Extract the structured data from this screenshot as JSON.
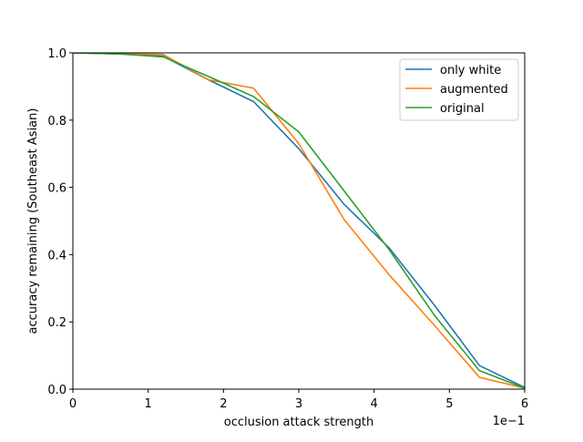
{
  "chart_data": {
    "type": "line",
    "xlabel": "occlusion attack strength",
    "ylabel": "accuracy remaining (Southeast Asian)",
    "x_offset_text": "1e−1",
    "xlim": [
      0,
      0.6
    ],
    "ylim": [
      0,
      1.0
    ],
    "x_ticks": [
      0,
      0.1,
      0.2,
      0.3,
      0.4,
      0.5,
      0.6
    ],
    "x_tick_labels": [
      "0",
      "1",
      "2",
      "3",
      "4",
      "5",
      "6"
    ],
    "y_ticks": [
      0,
      0.2,
      0.4,
      0.6,
      0.8,
      1.0
    ],
    "y_tick_labels": [
      "0.0",
      "0.2",
      "0.4",
      "0.6",
      "0.8",
      "1.0"
    ],
    "grid": false,
    "legend_position": "top-right",
    "x": [
      0,
      0.06,
      0.12,
      0.18,
      0.24,
      0.3,
      0.36,
      0.42,
      0.48,
      0.54,
      0.6
    ],
    "series": [
      {
        "name": "only white",
        "color": "#1f77b4",
        "values": [
          1.0,
          0.997,
          0.99,
          0.92,
          0.855,
          0.715,
          0.55,
          0.42,
          0.25,
          0.07,
          0.005
        ]
      },
      {
        "name": "augmented",
        "color": "#ff7f0e",
        "values": [
          1.0,
          0.998,
          0.995,
          0.92,
          0.895,
          0.73,
          0.505,
          0.34,
          0.19,
          0.035,
          0.003
        ]
      },
      {
        "name": "original",
        "color": "#2ca02c",
        "values": [
          1.0,
          0.997,
          0.988,
          0.93,
          0.87,
          0.765,
          0.59,
          0.415,
          0.22,
          0.055,
          0.003
        ]
      }
    ]
  }
}
